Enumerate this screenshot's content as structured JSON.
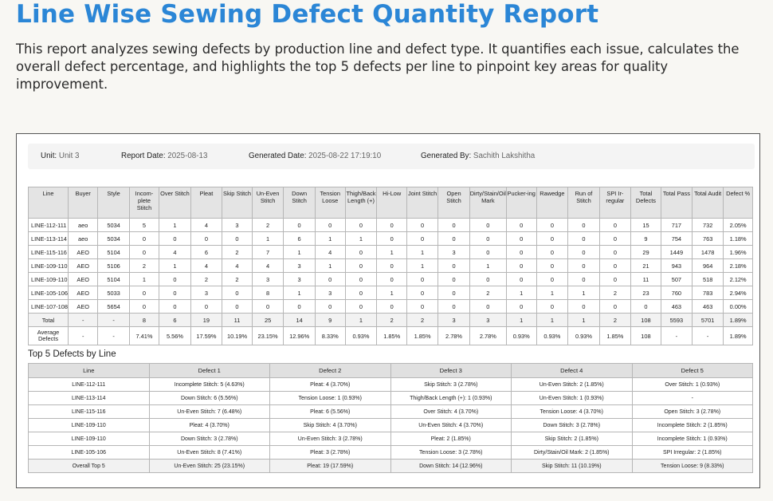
{
  "title": "Line Wise Sewing Defect Quantity Report",
  "description": "This report analyzes sewing defects by production line and defect type. It quantifies each issue, calculates the overall defect percentage, and highlights the top 5 defects per line to pinpoint key areas for quality improvement.",
  "meta": {
    "unit_label": "Unit:",
    "unit_value": "Unit 3",
    "report_date_label": "Report Date:",
    "report_date_value": "2025-08-13",
    "generated_date_label": "Generated Date:",
    "generated_date_value": "2025-08-22 17:19:10",
    "generated_by_label": "Generated By:",
    "generated_by_value": "Sachith Lakshitha"
  },
  "defect_table": {
    "headers": [
      "Line",
      "Buyer",
      "Style",
      "Incom-plete Stitch",
      "Over Stitch",
      "Pleat",
      "Skip Stitch",
      "Un-Even Stitch",
      "Down Stitch",
      "Tension Loose",
      "Thigh/Back Length (+)",
      "Hi-Low",
      "Joint Stitch",
      "Open Stitch",
      "Dirty/Stain/Oil Mark",
      "Pucker-ing",
      "Rawedge",
      "Run of Stitch",
      "SPI Ir-regular",
      "Total Defects",
      "Total Pass",
      "Total Audit",
      "Defect %"
    ],
    "rows": [
      [
        "LINE-112-111",
        "aeo",
        "5034",
        "5",
        "1",
        "4",
        "3",
        "2",
        "0",
        "0",
        "0",
        "0",
        "0",
        "0",
        "0",
        "0",
        "0",
        "0",
        "0",
        "15",
        "717",
        "732",
        "2.05%"
      ],
      [
        "LINE-113-114",
        "aeo",
        "5034",
        "0",
        "0",
        "0",
        "0",
        "1",
        "6",
        "1",
        "1",
        "0",
        "0",
        "0",
        "0",
        "0",
        "0",
        "0",
        "0",
        "9",
        "754",
        "763",
        "1.18%"
      ],
      [
        "LINE-115-116",
        "AEO",
        "5104",
        "0",
        "4",
        "6",
        "2",
        "7",
        "1",
        "4",
        "0",
        "1",
        "1",
        "3",
        "0",
        "0",
        "0",
        "0",
        "0",
        "29",
        "1449",
        "1478",
        "1.96%"
      ],
      [
        "LINE-109-110",
        "AEO",
        "5106",
        "2",
        "1",
        "4",
        "4",
        "4",
        "3",
        "1",
        "0",
        "0",
        "1",
        "0",
        "1",
        "0",
        "0",
        "0",
        "0",
        "21",
        "943",
        "964",
        "2.18%"
      ],
      [
        "LINE-109-110",
        "AEO",
        "5104",
        "1",
        "0",
        "2",
        "2",
        "3",
        "3",
        "0",
        "0",
        "0",
        "0",
        "0",
        "0",
        "0",
        "0",
        "0",
        "0",
        "11",
        "507",
        "518",
        "2.12%"
      ],
      [
        "LINE-105-106",
        "AEO",
        "5033",
        "0",
        "0",
        "3",
        "0",
        "8",
        "1",
        "3",
        "0",
        "1",
        "0",
        "0",
        "2",
        "1",
        "1",
        "1",
        "2",
        "23",
        "760",
        "783",
        "2.94%"
      ],
      [
        "LINE-107-108",
        "AEO",
        "5654",
        "0",
        "0",
        "0",
        "0",
        "0",
        "0",
        "0",
        "0",
        "0",
        "0",
        "0",
        "0",
        "0",
        "0",
        "0",
        "0",
        "0",
        "463",
        "463",
        "0.00%"
      ]
    ],
    "total_row": [
      "Total",
      "-",
      "-",
      "8",
      "6",
      "19",
      "11",
      "25",
      "14",
      "9",
      "1",
      "2",
      "2",
      "3",
      "3",
      "1",
      "1",
      "1",
      "2",
      "108",
      "5593",
      "5701",
      "1.89%"
    ],
    "average_row": [
      "Average Defects",
      "-",
      "-",
      "7.41%",
      "5.56%",
      "17.59%",
      "10.19%",
      "23.15%",
      "12.96%",
      "8.33%",
      "0.93%",
      "1.85%",
      "1.85%",
      "2.78%",
      "2.78%",
      "0.93%",
      "0.93%",
      "0.93%",
      "1.85%",
      "108",
      "-",
      "-",
      "1.89%"
    ]
  },
  "top5": {
    "title": "Top 5 Defects by Line",
    "headers": [
      "Line",
      "Defect 1",
      "Defect 2",
      "Defect 3",
      "Defect 4",
      "Defect 5"
    ],
    "rows": [
      [
        "LINE-112-111",
        "Incomplete Stitch: 5 (4.63%)",
        "Pleat: 4 (3.70%)",
        "Skip Stitch: 3 (2.78%)",
        "Un-Even Stitch: 2 (1.85%)",
        "Over Stitch: 1 (0.93%)"
      ],
      [
        "LINE-113-114",
        "Down Stitch: 6 (5.56%)",
        "Tension Loose: 1 (0.93%)",
        "Thigh/Back Length (+): 1 (0.93%)",
        "Un-Even Stitch: 1 (0.93%)",
        "-"
      ],
      [
        "LINE-115-116",
        "Un-Even Stitch: 7 (6.48%)",
        "Pleat: 6 (5.56%)",
        "Over Stitch: 4 (3.70%)",
        "Tension Loose: 4 (3.70%)",
        "Open Stitch: 3 (2.78%)"
      ],
      [
        "LINE-109-110",
        "Pleat: 4 (3.70%)",
        "Skip Stitch: 4 (3.70%)",
        "Un-Even Stitch: 4 (3.70%)",
        "Down Stitch: 3 (2.78%)",
        "Incomplete Stitch: 2 (1.85%)"
      ],
      [
        "LINE-109-110",
        "Down Stitch: 3 (2.78%)",
        "Un-Even Stitch: 3 (2.78%)",
        "Pleat: 2 (1.85%)",
        "Skip Stitch: 2 (1.85%)",
        "Incomplete Stitch: 1 (0.93%)"
      ],
      [
        "LINE-105-106",
        "Un-Even Stitch: 8 (7.41%)",
        "Pleat: 3 (2.78%)",
        "Tension Loose: 3 (2.78%)",
        "Dirty/Stain/Oil Mark: 2 (1.85%)",
        "SPI Irregular: 2 (1.85%)"
      ],
      [
        "Overall Top 5",
        "Un-Even Stitch: 25 (23.15%)",
        "Pleat: 19 (17.59%)",
        "Down Stitch: 14 (12.96%)",
        "Skip Stitch: 11 (10.19%)",
        "Tension Loose: 9 (8.33%)"
      ]
    ]
  }
}
